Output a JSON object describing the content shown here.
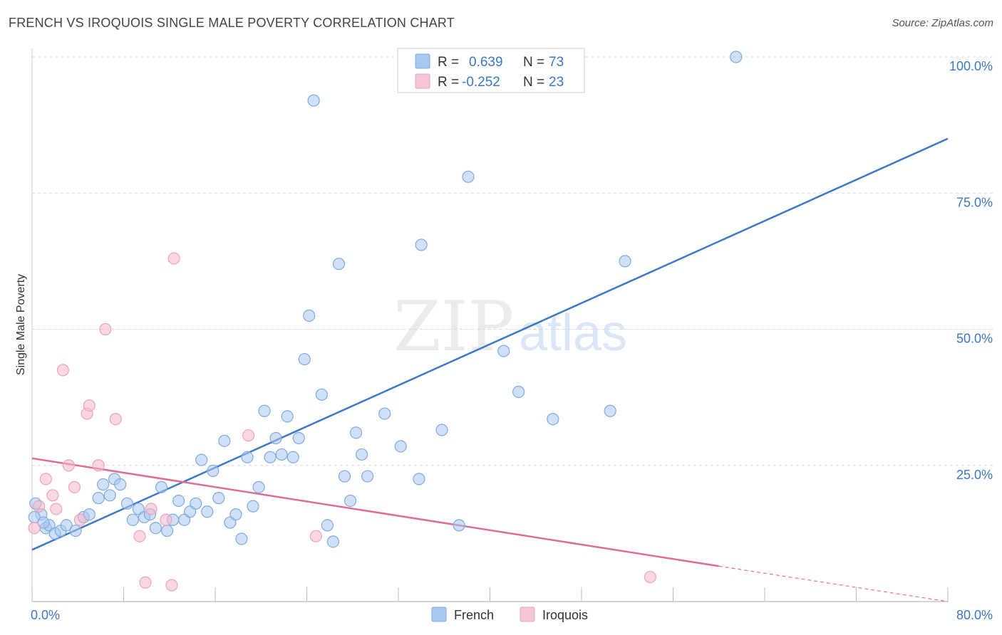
{
  "title": "FRENCH VS IROQUOIS SINGLE MALE POVERTY CORRELATION CHART",
  "source": "Source: ZipAtlas.com",
  "watermark": {
    "zip": "ZIP",
    "atlas": "atlas"
  },
  "colors": {
    "blue": "#3b78c8",
    "blue_fill": "#a9c8f0",
    "pink": "#e06c96",
    "pink_fill": "#f5b6c8",
    "grid": "#d8d8d8"
  },
  "legend": {
    "french": {
      "r_label": "R =",
      "r_value": "0.639",
      "n_label": "N =",
      "n_value": "73"
    },
    "iroquois": {
      "r_label": "R =",
      "r_value": "-0.252",
      "n_label": "N =",
      "n_value": "23"
    }
  },
  "bottom_legend": [
    "French",
    "Iroquois"
  ],
  "chart_data": {
    "type": "scatter",
    "title": "FRENCH VS IROQUOIS SINGLE MALE POVERTY CORRELATION CHART",
    "xlabel": "",
    "ylabel": "Single Male Poverty",
    "xlim": [
      0,
      80
    ],
    "ylim": [
      0,
      100
    ],
    "x_tick_labels": [
      "0.0%",
      "80.0%"
    ],
    "y_tick_labels": [
      "25.0%",
      "50.0%",
      "75.0%",
      "100.0%"
    ],
    "y_ticks": [
      25,
      50,
      75,
      100
    ],
    "grid": true,
    "legend_position": "top-center",
    "series": [
      {
        "name": "French",
        "color": "#3b78c8",
        "trendline": {
          "x": [
            0,
            80
          ],
          "y": [
            9.5,
            85
          ]
        },
        "points": [
          [
            0.3,
            18
          ],
          [
            0.8,
            16
          ],
          [
            1.2,
            13.5
          ],
          [
            1.5,
            14
          ],
          [
            2,
            12.5
          ],
          [
            2.5,
            13
          ],
          [
            3,
            14
          ],
          [
            3.8,
            13
          ],
          [
            4.5,
            15.5
          ],
          [
            5,
            16
          ],
          [
            5.8,
            19
          ],
          [
            6.2,
            21.5
          ],
          [
            6.8,
            19.5
          ],
          [
            7.2,
            22.5
          ],
          [
            7.7,
            21.5
          ],
          [
            8.3,
            18
          ],
          [
            8.8,
            15
          ],
          [
            9.3,
            17
          ],
          [
            9.8,
            15.5
          ],
          [
            10.3,
            16
          ],
          [
            10.8,
            13.5
          ],
          [
            11.3,
            21
          ],
          [
            11.8,
            13
          ],
          [
            12.3,
            15
          ],
          [
            12.8,
            18.5
          ],
          [
            13.3,
            15
          ],
          [
            13.8,
            16.5
          ],
          [
            14.3,
            18
          ],
          [
            14.8,
            26
          ],
          [
            15.3,
            16.5
          ],
          [
            15.8,
            24
          ],
          [
            16.3,
            19
          ],
          [
            16.8,
            29.5
          ],
          [
            17.3,
            14.5
          ],
          [
            17.8,
            16
          ],
          [
            18.3,
            11.5
          ],
          [
            18.8,
            26.5
          ],
          [
            19.3,
            17.5
          ],
          [
            19.8,
            21
          ],
          [
            20.3,
            35
          ],
          [
            20.8,
            26.5
          ],
          [
            21.3,
            30
          ],
          [
            21.8,
            27
          ],
          [
            22.3,
            34
          ],
          [
            22.8,
            26.5
          ],
          [
            23.3,
            30
          ],
          [
            23.8,
            44.5
          ],
          [
            24.2,
            52.5
          ],
          [
            24.6,
            92
          ],
          [
            25.3,
            38
          ],
          [
            25.8,
            14
          ],
          [
            26.3,
            11
          ],
          [
            26.8,
            62
          ],
          [
            27.3,
            23
          ],
          [
            27.8,
            18.5
          ],
          [
            28.3,
            31
          ],
          [
            28.8,
            27
          ],
          [
            29.3,
            23
          ],
          [
            30.8,
            34.5
          ],
          [
            32.2,
            28.5
          ],
          [
            33.8,
            22.5
          ],
          [
            34.0,
            65.5
          ],
          [
            35.8,
            31.5
          ],
          [
            37.3,
            14
          ],
          [
            38.1,
            78
          ],
          [
            41.2,
            46
          ],
          [
            42.5,
            38.5
          ],
          [
            45.5,
            33.5
          ],
          [
            50.5,
            35
          ],
          [
            51.8,
            62.5
          ],
          [
            61.5,
            100
          ],
          [
            0.2,
            15.5
          ],
          [
            1.0,
            14.5
          ]
        ]
      },
      {
        "name": "Iroquois",
        "color": "#e06c96",
        "trendline": {
          "x": [
            0,
            60
          ],
          "y": [
            26.3,
            6.5
          ],
          "dashed_to": [
            80,
            0
          ]
        },
        "points": [
          [
            0.2,
            13.5
          ],
          [
            0.6,
            17.5
          ],
          [
            1.2,
            22.5
          ],
          [
            1.8,
            19.5
          ],
          [
            2.1,
            17
          ],
          [
            2.7,
            42.5
          ],
          [
            3.2,
            25
          ],
          [
            3.7,
            21
          ],
          [
            4.2,
            15
          ],
          [
            4.8,
            34.5
          ],
          [
            5.0,
            36
          ],
          [
            5.8,
            25
          ],
          [
            6.4,
            50
          ],
          [
            7.3,
            33.5
          ],
          [
            9.4,
            12
          ],
          [
            9.9,
            3.5
          ],
          [
            10.4,
            17
          ],
          [
            11.7,
            15
          ],
          [
            12.4,
            63
          ],
          [
            12.2,
            3
          ],
          [
            18.9,
            30.5
          ],
          [
            24.8,
            12
          ],
          [
            54.0,
            4.5
          ]
        ]
      }
    ]
  }
}
